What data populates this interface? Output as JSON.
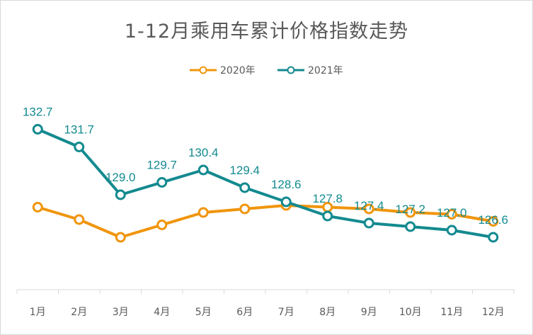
{
  "chart_data": {
    "type": "line",
    "title": "1-12月乘用车累计价格指数走势",
    "categories": [
      "1月",
      "2月",
      "3月",
      "4月",
      "5月",
      "6月",
      "7月",
      "8月",
      "9月",
      "10月",
      "11月",
      "12月"
    ],
    "series": [
      {
        "name": "2020年",
        "color": "#f0950c",
        "values": [
          128.3,
          127.6,
          126.6,
          127.3,
          128.0,
          128.2,
          128.4,
          128.3,
          128.2,
          128.0,
          127.9,
          127.5
        ]
      },
      {
        "name": "2021年",
        "color": "#138a8f",
        "values": [
          132.7,
          131.7,
          129.0,
          129.7,
          130.4,
          129.4,
          128.6,
          127.8,
          127.4,
          127.2,
          127.0,
          126.6
        ],
        "data_labels": [
          "132.7",
          "131.7",
          "129.0",
          "129.7",
          "130.4",
          "129.4",
          "128.6",
          "127.8",
          "127.4",
          "127.2",
          "127.0",
          "126.6"
        ]
      }
    ],
    "legend_position": "top-center",
    "grid": false,
    "ylim": [
      122,
      136
    ]
  }
}
